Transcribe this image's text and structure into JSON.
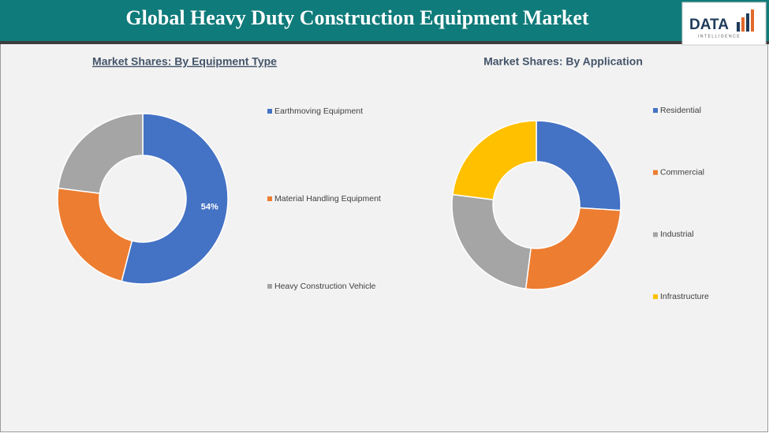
{
  "header": {
    "title": "Global Heavy Duty Construction Equipment Market",
    "logo": "DATA",
    "logo_sub": "INTELLIGENCE"
  },
  "chart_data": [
    {
      "type": "donut",
      "title": "Market Shares: By Equipment Type",
      "categories": [
        "Earthmoving Equipment",
        "Material Handling Equipment",
        "Heavy Construction Vehicle"
      ],
      "values": [
        54,
        23,
        23
      ],
      "value_labels": [
        "54%",
        null,
        null
      ],
      "colors": [
        "#4472c4",
        "#ed7d31",
        "#a5a5a5"
      ]
    },
    {
      "type": "donut",
      "title": "Market Shares: By Application",
      "categories": [
        "Residential",
        "Commercial",
        "Industrial",
        "Infrastructure"
      ],
      "values": [
        26,
        26,
        25,
        23
      ],
      "colors": [
        "#4472c4",
        "#ed7d31",
        "#a5a5a5",
        "#ffc000"
      ]
    }
  ]
}
